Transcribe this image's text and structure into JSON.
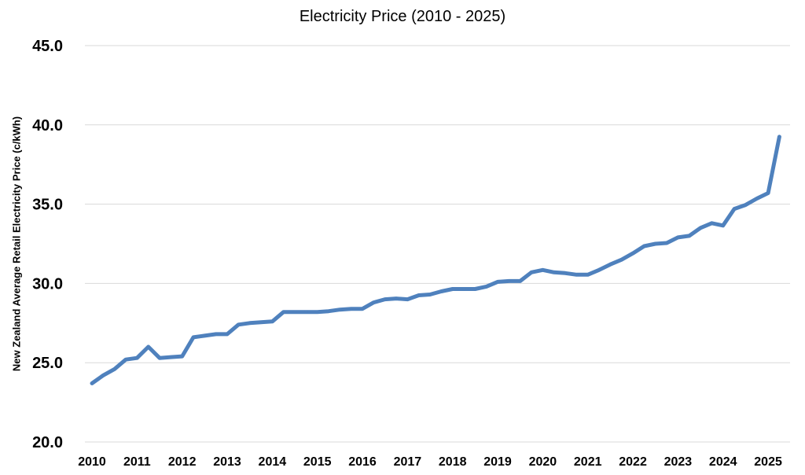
{
  "chart_data": {
    "type": "line",
    "title": "Electricity Price (2010  - 2025)",
    "xlabel": "",
    "ylabel": "New Zealand Average Retail Electricity  Price (c/kWh)",
    "ylim": [
      20.0,
      45.0
    ],
    "yticks": [
      "20.0",
      "25.0",
      "30.0",
      "35.0",
      "40.0",
      "45.0"
    ],
    "xticks": [
      "2010",
      "2011",
      "2012",
      "2013",
      "2014",
      "2015",
      "2016",
      "2017",
      "2018",
      "2019",
      "2020",
      "2021",
      "2022",
      "2023",
      "2024",
      "2025"
    ],
    "xlim": [
      2010,
      2025.4
    ],
    "grid": true,
    "legend": "none",
    "series_color": "#4f81bd",
    "series": [
      {
        "x": [
          2010.0,
          2010.25,
          2010.5,
          2010.75,
          2011.0,
          2011.25,
          2011.5,
          2011.75,
          2012.0,
          2012.25,
          2012.5,
          2012.75,
          2013.0,
          2013.25,
          2013.5,
          2013.75,
          2014.0,
          2014.25,
          2014.5,
          2014.75,
          2015.0,
          2015.25,
          2015.5,
          2015.75,
          2016.0,
          2016.25,
          2016.5,
          2016.75,
          2017.0,
          2017.25,
          2017.5,
          2017.75,
          2018.0,
          2018.25,
          2018.5,
          2018.75,
          2019.0,
          2019.25,
          2019.5,
          2019.75,
          2020.0,
          2020.25,
          2020.5,
          2020.75,
          2021.0,
          2021.25,
          2021.5,
          2021.75,
          2022.0,
          2022.25,
          2022.5,
          2022.75,
          2023.0,
          2023.25,
          2023.5,
          2023.75,
          2024.0,
          2024.25,
          2024.5,
          2024.75,
          2025.0,
          2025.25
        ],
        "values": [
          23.7,
          24.2,
          24.6,
          25.2,
          25.3,
          26.0,
          25.3,
          25.35,
          25.4,
          26.6,
          26.7,
          26.8,
          26.8,
          27.4,
          27.5,
          27.55,
          27.6,
          28.2,
          28.2,
          28.2,
          28.2,
          28.25,
          28.35,
          28.4,
          28.4,
          28.8,
          29.0,
          29.05,
          29.0,
          29.25,
          29.3,
          29.5,
          29.65,
          29.65,
          29.65,
          29.8,
          30.1,
          30.15,
          30.15,
          30.7,
          30.85,
          30.7,
          30.65,
          30.55,
          30.55,
          30.85,
          31.2,
          31.5,
          31.9,
          32.35,
          32.5,
          32.55,
          32.9,
          33.0,
          33.5,
          33.8,
          33.65,
          34.7,
          34.95,
          35.35,
          35.7,
          39.25
        ]
      }
    ]
  }
}
